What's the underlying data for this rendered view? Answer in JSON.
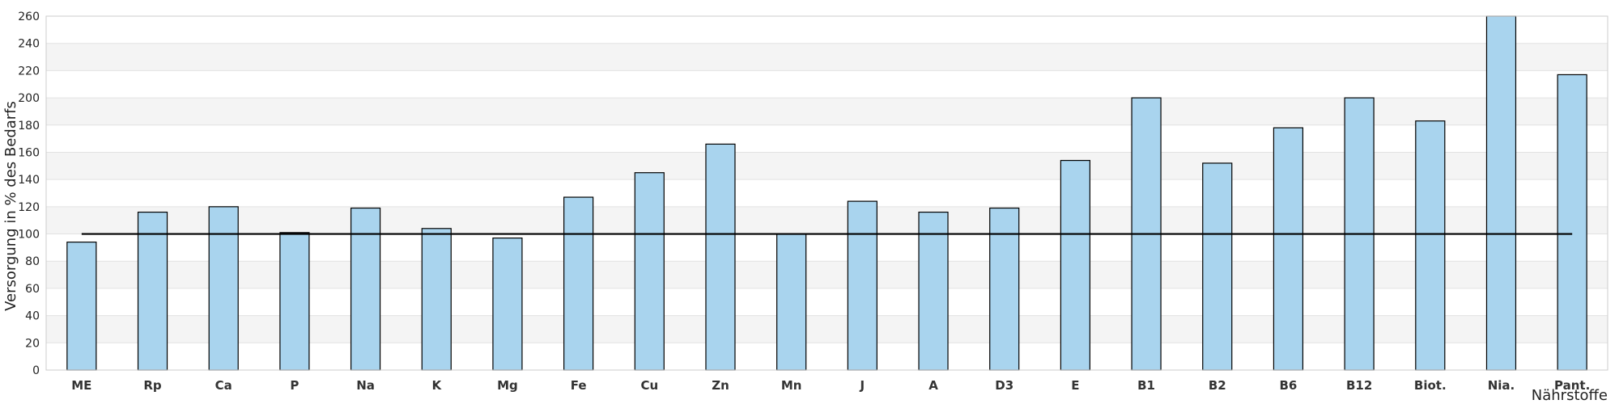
{
  "chart_data": {
    "type": "bar",
    "title": "",
    "xlabel": "Nährstoffe",
    "ylabel": "Versorgung in % des Bedarfs",
    "ylim": [
      0,
      260
    ],
    "yticks": [
      0,
      20,
      40,
      60,
      80,
      100,
      120,
      140,
      160,
      180,
      200,
      220,
      240,
      260
    ],
    "categories": [
      "ME",
      "Rp",
      "Ca",
      "P",
      "Na",
      "K",
      "Mg",
      "Fe",
      "Cu",
      "Zn",
      "Mn",
      "J",
      "A",
      "D3",
      "E",
      "B1",
      "B2",
      "B6",
      "B12",
      "Biot.",
      "Nia.",
      "Pant."
    ],
    "values": [
      94,
      116,
      120,
      101,
      119,
      104,
      97,
      127,
      145,
      166,
      100,
      124,
      116,
      119,
      154,
      200,
      152,
      178,
      200,
      183,
      260,
      217
    ],
    "reference_line": 100,
    "grid": "horizontal bands",
    "legend": "none",
    "colors": {
      "bar_fill": "#a9d4ee",
      "bar_stroke": "#000000",
      "band_fill": "#f4f4f4",
      "reference_line": "#000000"
    }
  }
}
